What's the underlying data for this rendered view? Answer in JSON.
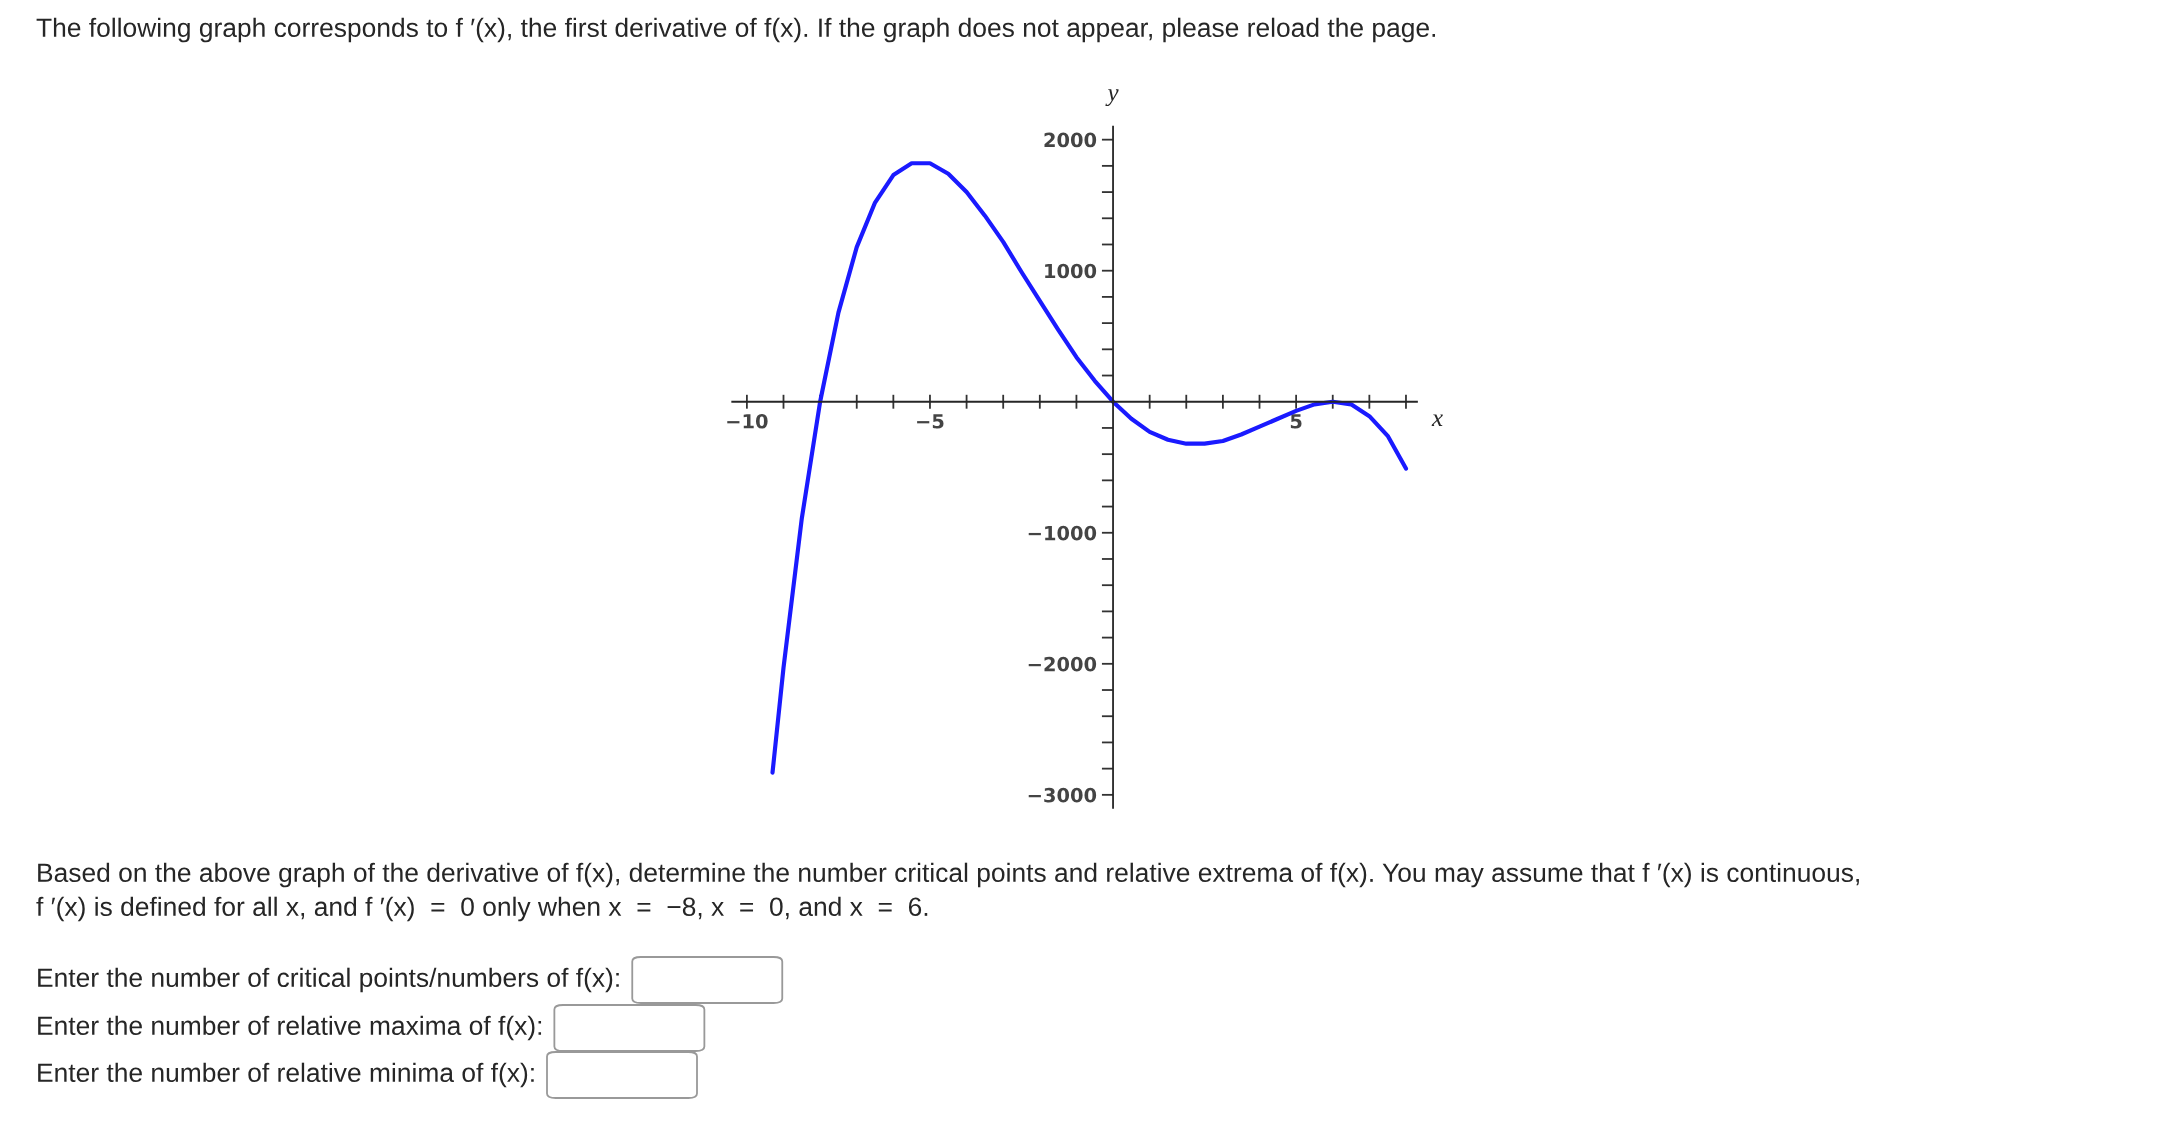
{
  "chart_data": {
    "type": "line",
    "title": "The following graph corresponds to f ′(x), the first derivative of f(x). If the graph does not appear, please reload the page.",
    "xlabel": "x",
    "ylabel": "y",
    "series": [
      {
        "color": "#1a1aff",
        "x": [
          -9.3,
          -9,
          -8.5,
          -8,
          -7.5,
          -7,
          -6.5,
          -6,
          -5.5,
          -5,
          -4.5,
          -4,
          -3.5,
          -3,
          -2.5,
          -2,
          -1.5,
          -1,
          -0.5,
          0,
          0.5,
          1,
          1.5,
          2,
          2.5,
          3,
          3.5,
          4,
          4.5,
          5,
          5.5,
          6,
          6.5,
          7,
          7.5,
          8
        ],
        "values": [
          -2830,
          -2030,
          -890,
          0,
          680,
          1180,
          1520,
          1730,
          1820,
          1820,
          1740,
          1600,
          1420,
          1220,
          990,
          770,
          550,
          340,
          160,
          0,
          -130,
          -230,
          -290,
          -320,
          -320,
          -300,
          -250,
          -190,
          -130,
          -70,
          -20,
          0,
          -20,
          -110,
          -260,
          -510
        ]
      }
    ],
    "xlim": [
      -10.4,
      8.3
    ],
    "ylim": [
      -3100,
      2100
    ],
    "xticks": [
      {
        "value": -10,
        "label": "−10"
      },
      {
        "value": -9,
        "label": null
      },
      {
        "value": -8,
        "label": null
      },
      {
        "value": -7,
        "label": null
      },
      {
        "value": -6,
        "label": null
      },
      {
        "value": -5,
        "label": "−5"
      },
      {
        "value": -4,
        "label": null
      },
      {
        "value": -3,
        "label": null
      },
      {
        "value": -2,
        "label": null
      },
      {
        "value": -1,
        "label": null
      },
      {
        "value": 1,
        "label": null
      },
      {
        "value": 2,
        "label": null
      },
      {
        "value": 3,
        "label": null
      },
      {
        "value": 4,
        "label": null
      },
      5,
      {
        "value": 6,
        "label": null
      },
      {
        "value": 7,
        "label": null
      },
      {
        "value": 8,
        "label": null
      }
    ],
    "yticks": [
      {
        "value": -3000,
        "label": "−3000"
      },
      {
        "value": -2800,
        "label": null
      },
      {
        "value": -2600,
        "label": null
      },
      {
        "value": -2400,
        "label": null
      },
      {
        "value": -2200,
        "label": null
      },
      {
        "value": -2000,
        "label": "−2000"
      },
      {
        "value": -1800,
        "label": null
      },
      {
        "value": -1600,
        "label": null
      },
      {
        "value": -1400,
        "label": null
      },
      {
        "value": -1200,
        "label": null
      },
      {
        "value": -1000,
        "label": "−1000"
      },
      {
        "value": -800,
        "label": null
      },
      {
        "value": -600,
        "label": null
      },
      {
        "value": -400,
        "label": null
      },
      {
        "value": -200,
        "label": null
      },
      {
        "value": 200,
        "label": null
      },
      {
        "value": 400,
        "label": null
      },
      {
        "value": 600,
        "label": null
      },
      {
        "value": 800,
        "label": null
      },
      1000,
      {
        "value": 1200,
        "label": null
      },
      {
        "value": 1400,
        "label": null
      },
      {
        "value": 1600,
        "label": null
      },
      {
        "value": 1800,
        "label": null
      },
      2000
    ],
    "grid": false,
    "legend": false,
    "marker": "none",
    "line_style": "solid",
    "annotations": [
      "Based on the above graph of the derivative of f(x), determine the number critical points and relative extrema of f(x). You may assume that f ′(x) is continuous,",
      "f ′(x) is defined for all x, and f ′(x)  =  0 only when x  =  −8, x  =  0, and x  =  6.",
      "Enter the number of critical points/numbers of f(x):",
      "Enter the number of relative maxima of f(x):",
      "Enter the number of relative minima of f(x):"
    ]
  }
}
